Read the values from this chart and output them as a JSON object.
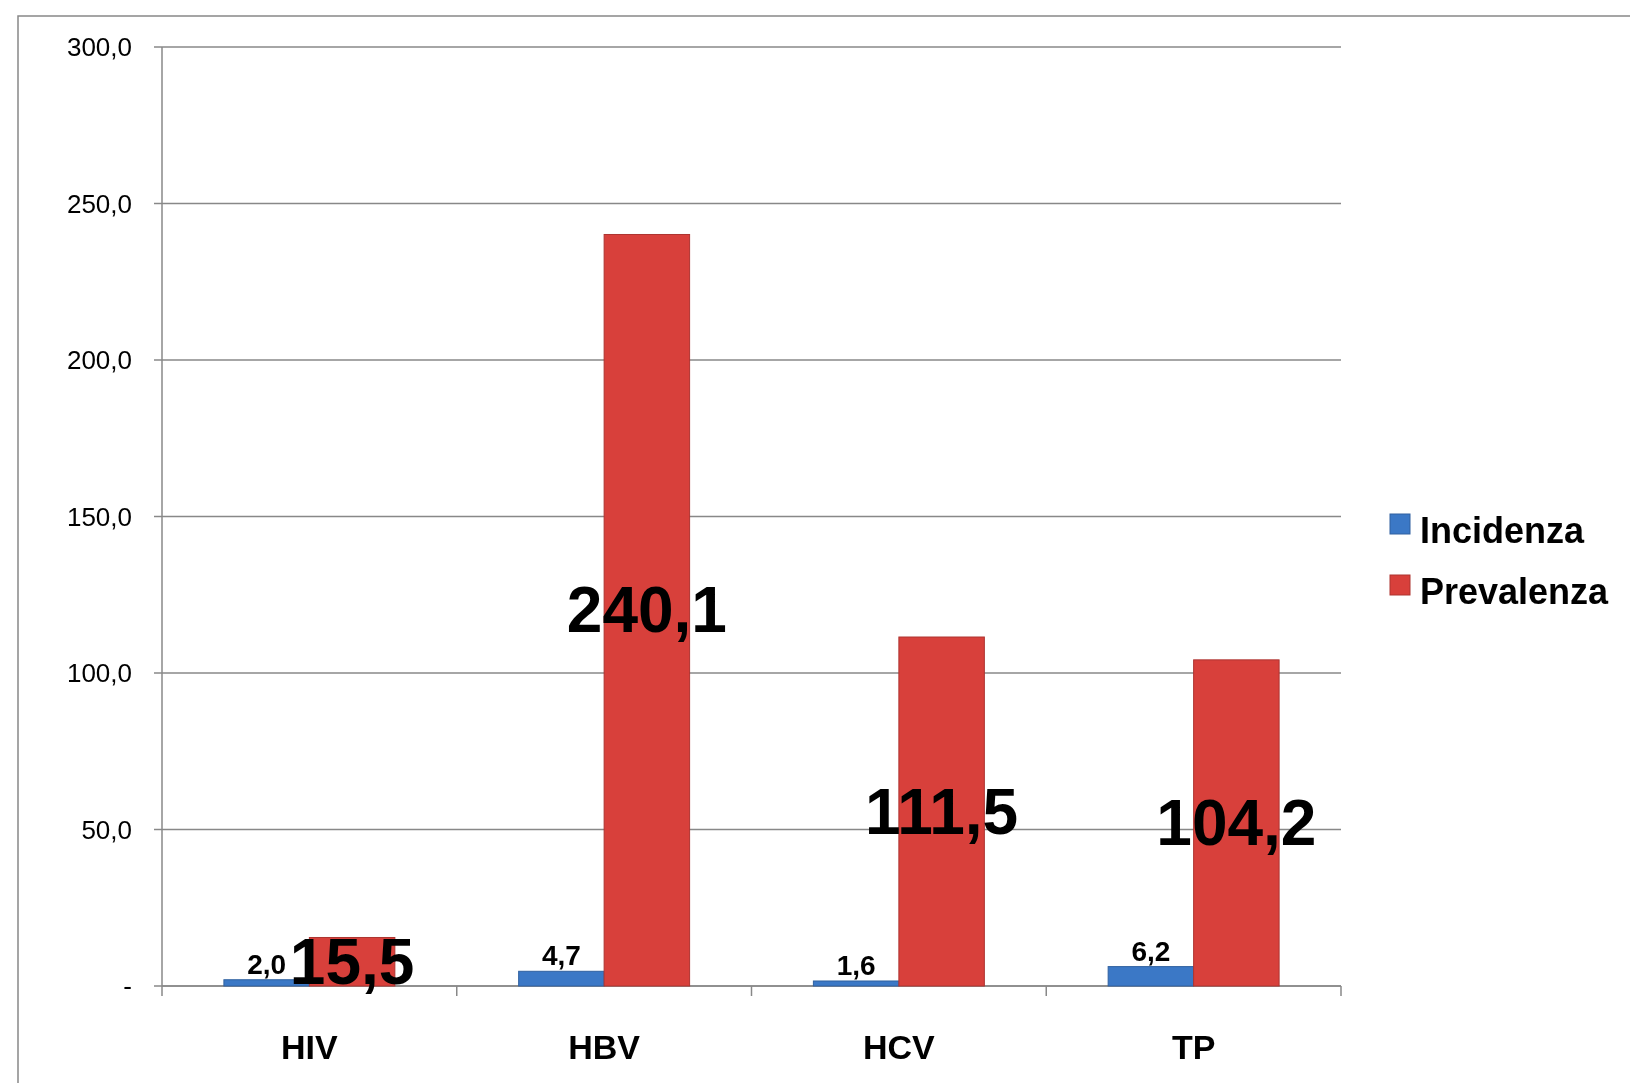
{
  "chart_data": {
    "type": "bar",
    "categories": [
      "HIV",
      "HBV",
      "HCV",
      "TP"
    ],
    "series": [
      {
        "name": "Incidenza",
        "color": "#3b78c6",
        "values": [
          2.0,
          4.7,
          1.6,
          6.2
        ],
        "value_labels": [
          "2,0",
          "4,7",
          "1,6",
          "6,2"
        ]
      },
      {
        "name": "Prevalenza",
        "color": "#d8403b",
        "values": [
          15.5,
          240.1,
          111.5,
          104.2
        ],
        "value_labels": [
          "15,5",
          "240,1",
          "111,5",
          "104,2"
        ]
      }
    ],
    "ylim": [
      0,
      300
    ],
    "yticks": [
      {
        "value": 0,
        "label": "-"
      },
      {
        "value": 50,
        "label": "50,0"
      },
      {
        "value": 100,
        "label": "100,0"
      },
      {
        "value": 150,
        "label": "150,0"
      },
      {
        "value": 200,
        "label": "200,0"
      },
      {
        "value": 250,
        "label": "250,0"
      },
      {
        "value": 300,
        "label": "300,0"
      }
    ],
    "grid": "y",
    "legend": "right"
  }
}
